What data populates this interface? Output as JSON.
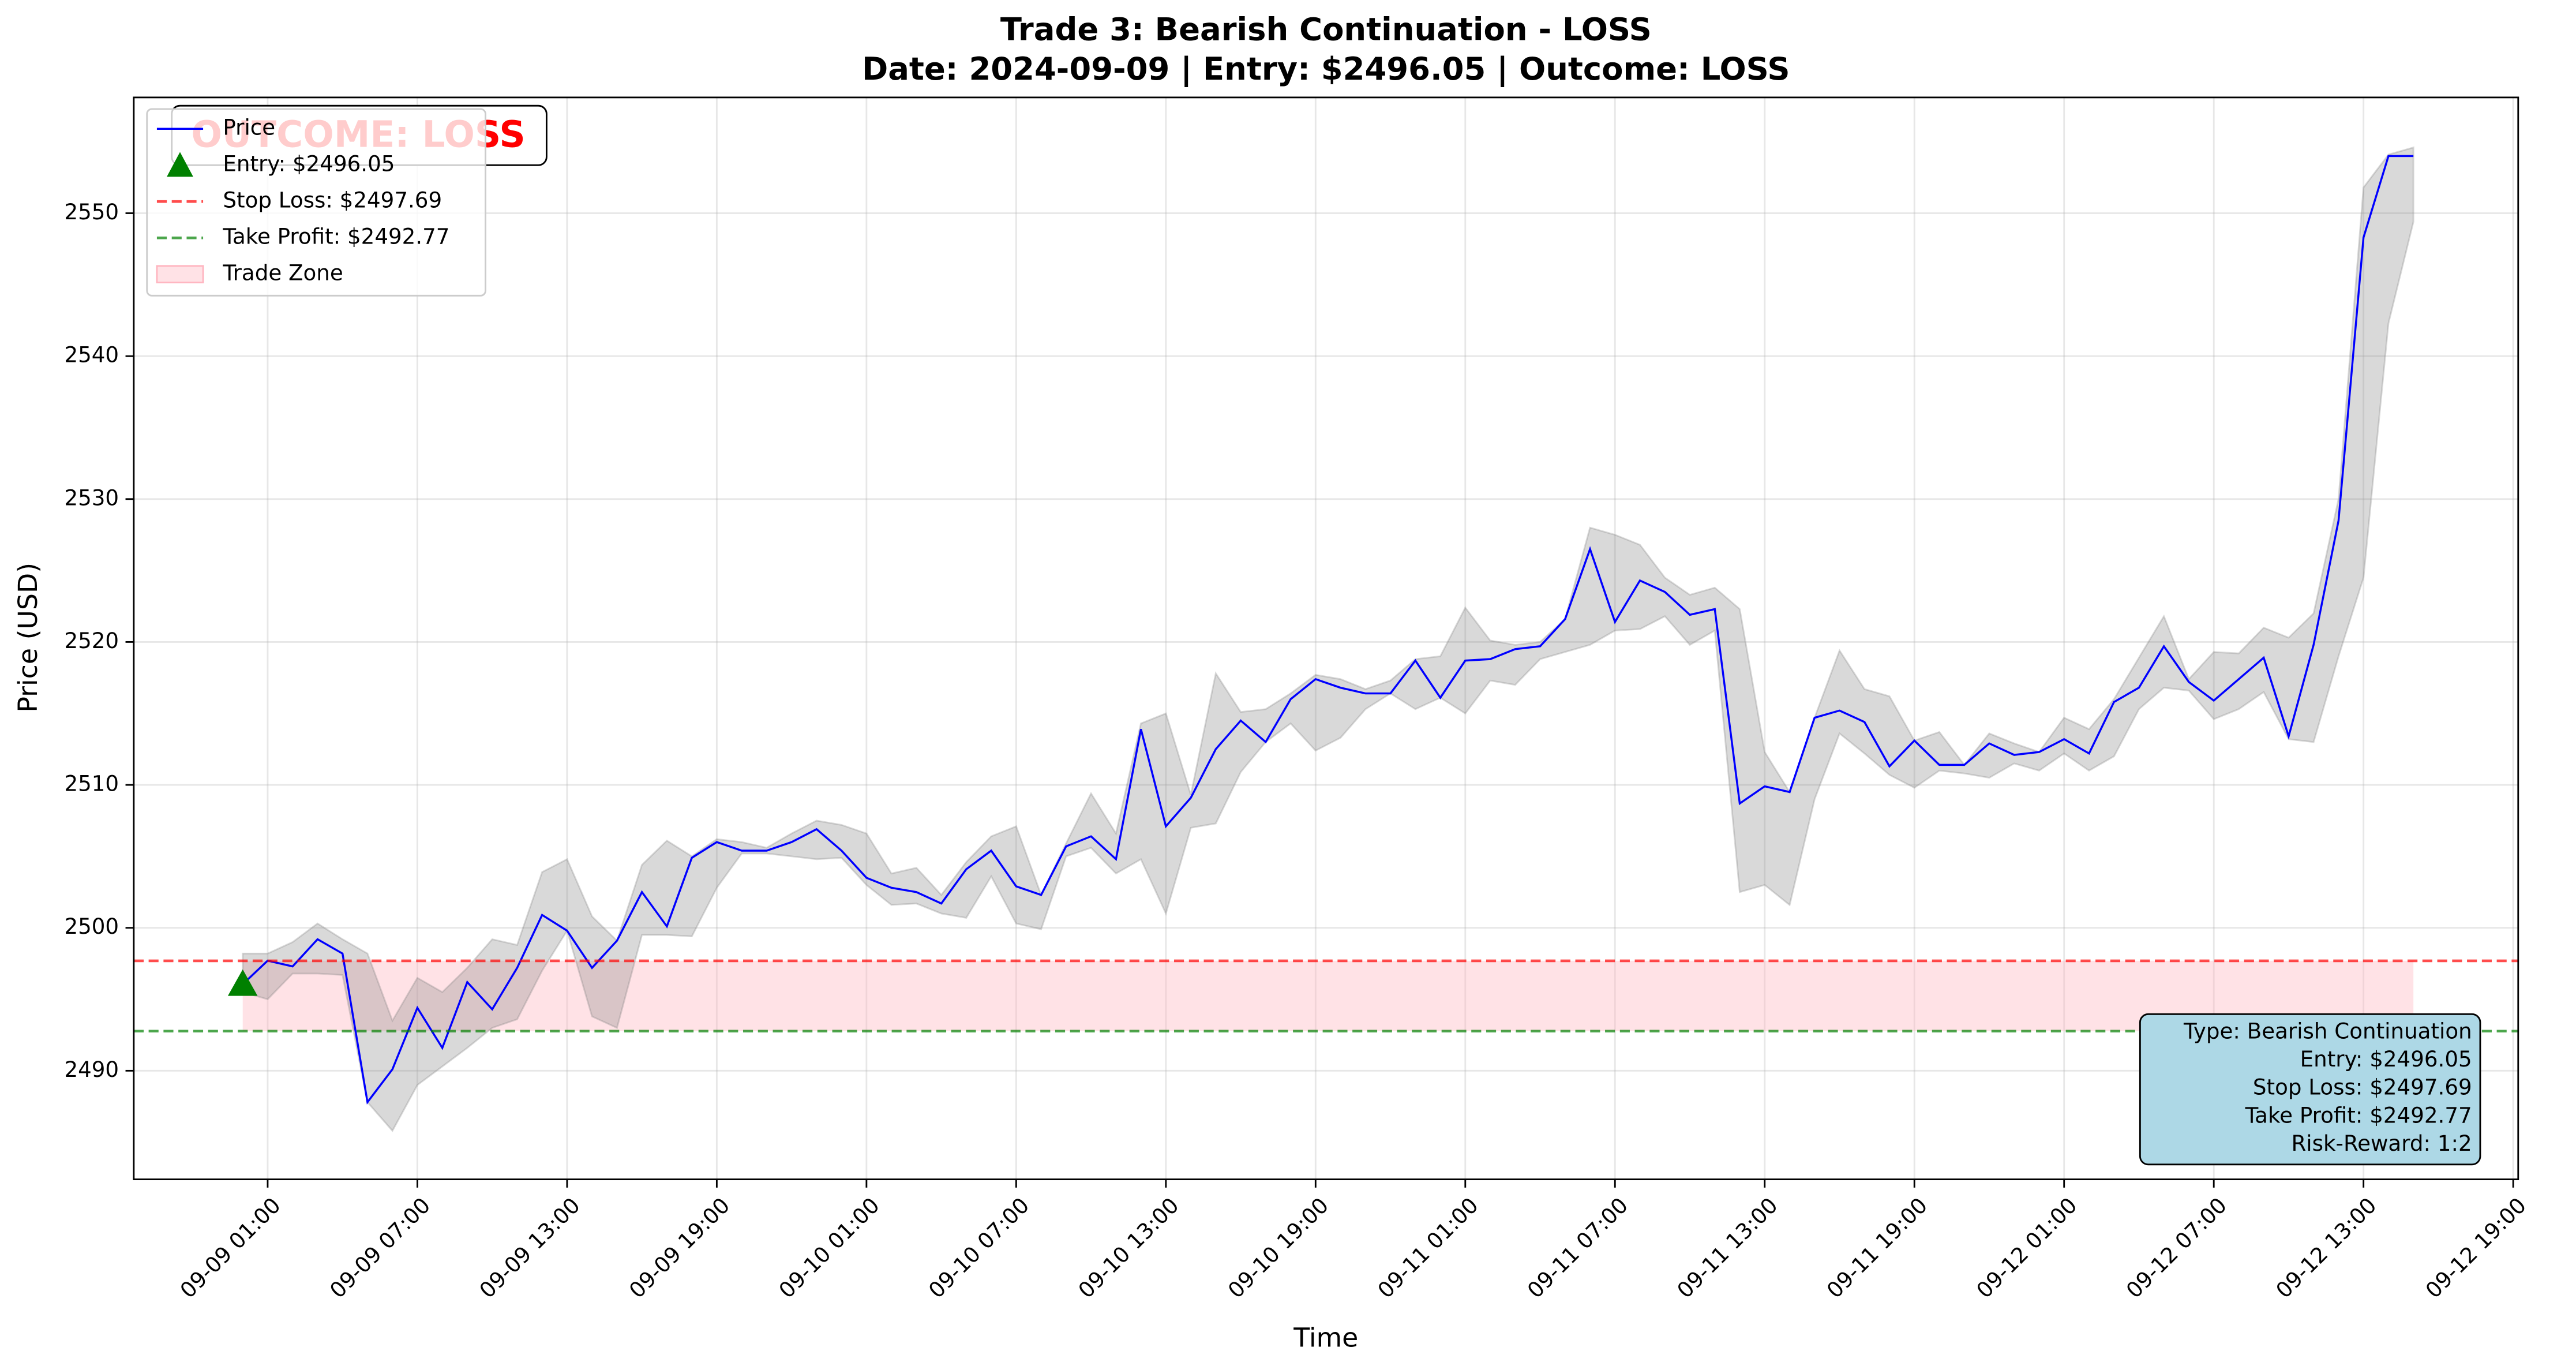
{
  "chart_data": {
    "type": "line",
    "title": "Trade 3: Bearish Continuation - LOSS",
    "subtitle": "Date: 2024-09-09 | Entry: $2496.05 | Outcome: LOSS",
    "xlabel": "Time",
    "ylabel": "Price (USD)",
    "x": [
      "09-09 00:00",
      "09-09 01:00",
      "09-09 02:00",
      "09-09 03:00",
      "09-09 04:00",
      "09-09 05:00",
      "09-09 06:00",
      "09-09 07:00",
      "09-09 08:00",
      "09-09 09:00",
      "09-09 10:00",
      "09-09 11:00",
      "09-09 12:00",
      "09-09 13:00",
      "09-09 14:00",
      "09-09 15:00",
      "09-09 16:00",
      "09-09 17:00",
      "09-09 18:00",
      "09-09 19:00",
      "09-09 20:00",
      "09-09 21:00",
      "09-09 22:00",
      "09-09 23:00",
      "09-10 00:00",
      "09-10 01:00",
      "09-10 02:00",
      "09-10 03:00",
      "09-10 04:00",
      "09-10 05:00",
      "09-10 06:00",
      "09-10 07:00",
      "09-10 08:00",
      "09-10 09:00",
      "09-10 10:00",
      "09-10 11:00",
      "09-10 12:00",
      "09-10 13:00",
      "09-10 14:00",
      "09-10 15:00",
      "09-10 16:00",
      "09-10 17:00",
      "09-10 18:00",
      "09-10 19:00",
      "09-10 20:00",
      "09-10 21:00",
      "09-10 22:00",
      "09-10 23:00",
      "09-11 00:00",
      "09-11 01:00",
      "09-11 02:00",
      "09-11 03:00",
      "09-11 04:00",
      "09-11 05:00",
      "09-11 06:00",
      "09-11 07:00",
      "09-11 08:00",
      "09-11 09:00",
      "09-11 10:00",
      "09-11 11:00",
      "09-11 12:00",
      "09-11 13:00",
      "09-11 14:00",
      "09-11 15:00",
      "09-11 16:00",
      "09-11 17:00",
      "09-11 18:00",
      "09-11 19:00",
      "09-11 20:00",
      "09-11 21:00",
      "09-11 22:00",
      "09-11 23:00",
      "09-12 00:00",
      "09-12 01:00",
      "09-12 02:00",
      "09-12 03:00",
      "09-12 04:00",
      "09-12 05:00",
      "09-12 06:00",
      "09-12 07:00",
      "09-12 08:00",
      "09-12 09:00",
      "09-12 10:00",
      "09-12 11:00",
      "09-12 12:00",
      "09-12 13:00",
      "09-12 14:00",
      "09-12 15:00"
    ],
    "series": [
      {
        "name": "Price",
        "color": "#0000ff",
        "values": [
          2496.05,
          2497.7,
          2497.3,
          2499.2,
          2498.2,
          2487.8,
          2490.1,
          2494.4,
          2491.6,
          2496.2,
          2494.3,
          2497.2,
          2500.9,
          2499.8,
          2497.2,
          2499.1,
          2502.5,
          2500.1,
          2504.9,
          2506.0,
          2505.4,
          2505.4,
          2506.0,
          2506.9,
          2505.4,
          2503.5,
          2502.8,
          2502.5,
          2501.7,
          2504.1,
          2505.4,
          2502.9,
          2502.3,
          2505.7,
          2506.4,
          2504.8,
          2513.9,
          2507.1,
          2509.1,
          2512.5,
          2514.5,
          2513.0,
          2516.0,
          2517.4,
          2516.8,
          2516.4,
          2516.4,
          2518.7,
          2516.1,
          2518.7,
          2518.8,
          2519.5,
          2519.7,
          2521.6,
          2526.5,
          2521.4,
          2524.3,
          2523.5,
          2521.9,
          2522.3,
          2508.7,
          2509.9,
          2509.5,
          2514.7,
          2515.2,
          2514.4,
          2511.3,
          2513.1,
          2511.4,
          2511.4,
          2512.9,
          2512.1,
          2512.3,
          2513.2,
          2512.2,
          2515.8,
          2516.8,
          2519.7,
          2517.2,
          2515.9,
          2517.4,
          2518.9,
          2513.4,
          2519.8,
          2528.5,
          2548.3,
          2554.0,
          2554.0
        ]
      }
    ],
    "band": {
      "color": "#808080",
      "high": [
        2498.2,
        2498.2,
        2499.0,
        2500.3,
        2499.2,
        2498.2,
        2493.5,
        2496.5,
        2495.5,
        2497.2,
        2499.2,
        2498.8,
        2503.9,
        2504.8,
        2500.8,
        2499.1,
        2504.4,
        2506.1,
        2505.0,
        2506.2,
        2506.0,
        2505.6,
        2506.6,
        2507.5,
        2507.2,
        2506.6,
        2503.8,
        2504.2,
        2502.3,
        2504.6,
        2506.4,
        2507.1,
        2502.3,
        2505.9,
        2509.4,
        2506.6,
        2514.3,
        2515.0,
        2509.3,
        2517.8,
        2515.1,
        2515.3,
        2516.4,
        2517.7,
        2517.4,
        2516.7,
        2517.3,
        2518.8,
        2519.0,
        2522.4,
        2520.1,
        2519.8,
        2520.0,
        2521.6,
        2528.0,
        2527.5,
        2526.8,
        2524.5,
        2523.3,
        2523.8,
        2522.3,
        2512.3,
        2509.5,
        2514.7,
        2519.4,
        2516.7,
        2516.2,
        2513.1,
        2513.7,
        2511.4,
        2513.6,
        2512.9,
        2512.3,
        2514.7,
        2513.9,
        2516.0,
        2518.9,
        2521.8,
        2517.4,
        2519.3,
        2519.2,
        2521.0,
        2520.3,
        2522.0,
        2530.0,
        2551.8,
        2554.1,
        2554.6
      ],
      "low": [
        2495.5,
        2495.0,
        2496.8,
        2496.8,
        2496.7,
        2487.8,
        2485.8,
        2489.0,
        2490.3,
        2491.6,
        2493.0,
        2493.6,
        2497.0,
        2499.8,
        2493.8,
        2493.0,
        2499.5,
        2499.5,
        2499.4,
        2502.8,
        2505.2,
        2505.2,
        2505.0,
        2504.8,
        2504.9,
        2503.0,
        2501.6,
        2501.7,
        2501.0,
        2500.7,
        2503.6,
        2500.3,
        2499.9,
        2505.0,
        2505.6,
        2503.8,
        2504.8,
        2501.0,
        2507.0,
        2507.3,
        2510.9,
        2513.0,
        2514.3,
        2512.4,
        2513.3,
        2515.3,
        2516.4,
        2515.3,
        2516.1,
        2515.0,
        2517.3,
        2517.0,
        2518.8,
        2519.3,
        2519.8,
        2520.8,
        2520.9,
        2521.8,
        2519.8,
        2520.8,
        2502.5,
        2503.0,
        2501.6,
        2509.0,
        2513.6,
        2512.2,
        2510.7,
        2509.8,
        2511.0,
        2510.8,
        2510.5,
        2511.5,
        2511.0,
        2512.2,
        2511.0,
        2512.0,
        2515.3,
        2516.8,
        2516.6,
        2514.6,
        2515.3,
        2516.5,
        2513.2,
        2513.0,
        2519.0,
        2524.5,
        2542.3,
        2549.4
      ]
    },
    "entry": {
      "name": "Entry: $2496.05",
      "value": 2496.05,
      "x": "09-09 00:00",
      "color": "#008000"
    },
    "stop_loss": {
      "name": "Stop Loss: $2497.69",
      "value": 2497.69,
      "color": "#ff0000"
    },
    "take_profit": {
      "name": "Take Profit: $2492.77",
      "value": 2492.77,
      "color": "#008000"
    },
    "trade_zone": {
      "name": "Trade Zone",
      "color": "#ffb6c1"
    },
    "annotation": "OUTCOME: LOSS",
    "info_box": [
      "Type: Bearish Continuation",
      "Entry: $2496.05",
      "Stop Loss: $2497.69",
      "Take Profit: $2492.77",
      "Risk-Reward: 1:2"
    ],
    "xlim": [
      "09-08 19:38",
      "09-12 19:12"
    ],
    "xticks": [
      "09-09 01:00",
      "09-09 07:00",
      "09-09 13:00",
      "09-09 19:00",
      "09-10 01:00",
      "09-10 07:00",
      "09-10 13:00",
      "09-10 19:00",
      "09-11 01:00",
      "09-11 07:00",
      "09-11 13:00",
      "09-11 19:00",
      "09-12 01:00",
      "09-12 07:00",
      "09-12 13:00",
      "09-12 19:00"
    ],
    "ylim": [
      2482.4,
      2558.1
    ],
    "yticks": [
      2490,
      2500,
      2510,
      2520,
      2530,
      2540,
      2550
    ],
    "grid": true,
    "legend": "upper left"
  }
}
